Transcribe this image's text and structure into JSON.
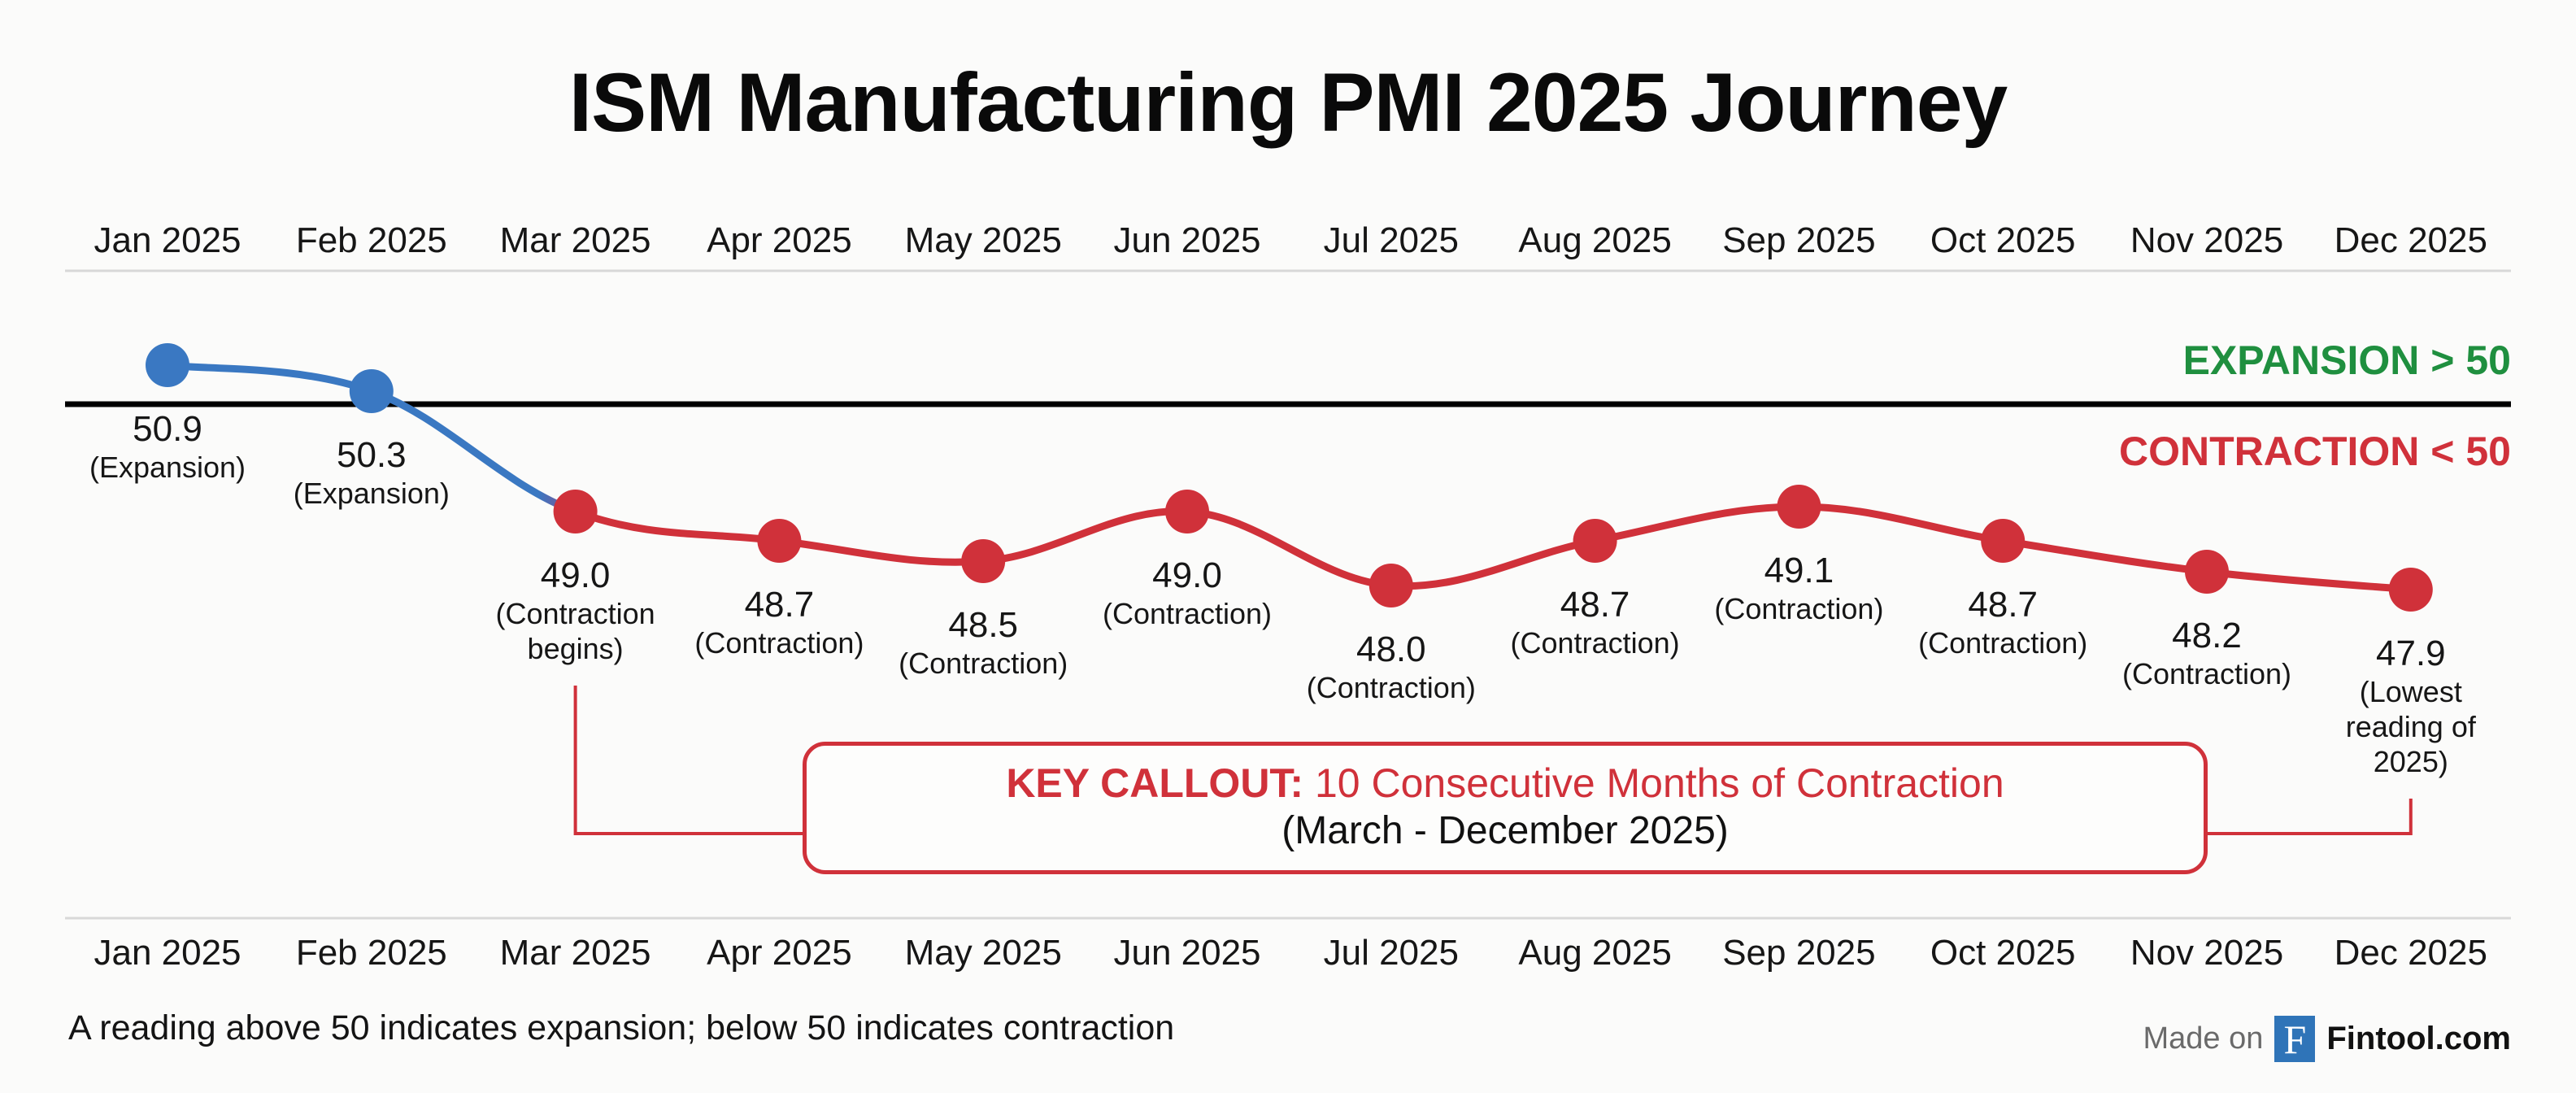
{
  "title": "ISM Manufacturing PMI 2025 Journey",
  "zones": {
    "expansion_label": "EXPANSION > 50",
    "contraction_label": "CONTRACTION < 50",
    "expansion_color": "#1f8f3f",
    "contraction_color": "#d0313a"
  },
  "colors": {
    "expansion_series": "#3a78c2",
    "contraction_series": "#d0313a",
    "threshold_line": "#000000",
    "divider": "#d4d4d4"
  },
  "callout": {
    "bold_label": "KEY CALLOUT:",
    "headline": " 10 Consecutive Months of Contraction",
    "range": "(March - December 2025)",
    "from_month_index": 2,
    "to_month_index": 11
  },
  "footnote": "A reading above 50 indicates expansion; below 50 indicates contraction",
  "brand": {
    "made_on": "Made on",
    "logo_letter": "F",
    "name": "Fintool.com",
    "logo_color": "#2f74b8"
  },
  "chart_data": {
    "type": "line",
    "title": "ISM Manufacturing PMI 2025 Journey",
    "xlabel": "",
    "ylabel": "",
    "threshold": 50,
    "categories": [
      "Jan 2025",
      "Feb 2025",
      "Mar 2025",
      "Apr 2025",
      "May 2025",
      "Jun 2025",
      "Jul 2025",
      "Aug 2025",
      "Sep 2025",
      "Oct 2025",
      "Nov 2025",
      "Dec 2025"
    ],
    "series": [
      {
        "name": "ISM Manufacturing PMI",
        "values": [
          50.9,
          50.3,
          49.0,
          48.7,
          48.5,
          49.0,
          48.0,
          48.7,
          49.1,
          48.7,
          48.2,
          47.9
        ]
      }
    ],
    "annotations": [
      [
        "(Expansion)"
      ],
      [
        "(Expansion)"
      ],
      [
        "(Contraction",
        "begins)"
      ],
      [
        "(Contraction)"
      ],
      [
        "(Contraction)"
      ],
      [
        "(Contraction)"
      ],
      [
        "(Contraction)"
      ],
      [
        "(Contraction)"
      ],
      [
        "(Contraction)"
      ],
      [
        "(Contraction)"
      ],
      [
        "(Contraction)"
      ],
      [
        "(Lowest",
        "reading of",
        "2025)"
      ]
    ],
    "value_labels": [
      "50.9",
      "50.3",
      "49.0",
      "48.7",
      "48.5",
      "49.0",
      "48.0",
      "48.7",
      "49.1",
      "48.7",
      "48.2",
      "47.9"
    ],
    "grid": false,
    "legend": "none"
  }
}
